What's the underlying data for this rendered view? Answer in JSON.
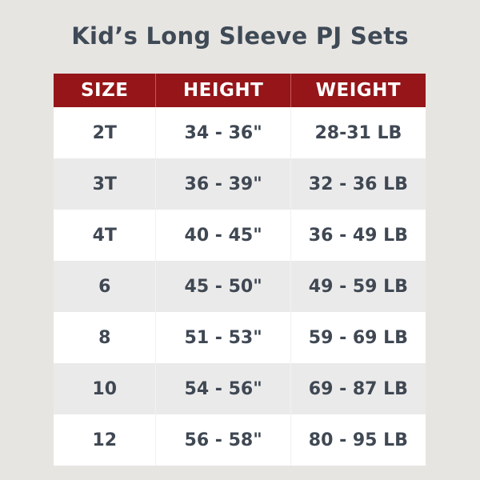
{
  "title": "Kid’s Long Sleeve PJ Sets",
  "colors": {
    "header_bg": "#951519",
    "header_text": "#ffffff",
    "body_text": "#3f4853",
    "row_alt": "#ebeaea"
  },
  "chart_data": {
    "type": "table",
    "title": "Kid’s Long Sleeve PJ Sets",
    "columns": [
      "SIZE",
      "HEIGHT",
      "WEIGHT"
    ],
    "rows": [
      [
        "2T",
        "34 - 36\"",
        "28-31 LB"
      ],
      [
        "3T",
        "36 - 39\"",
        "32 - 36 LB"
      ],
      [
        "4T",
        "40 - 45\"",
        "36 - 49 LB"
      ],
      [
        "6",
        "45 - 50\"",
        "49 - 59 LB"
      ],
      [
        "8",
        "51 - 53\"",
        "59 - 69 LB"
      ],
      [
        "10",
        "54 - 56\"",
        "69 - 87 LB"
      ],
      [
        "12",
        "56 - 58\"",
        "80 - 95 LB"
      ]
    ]
  }
}
